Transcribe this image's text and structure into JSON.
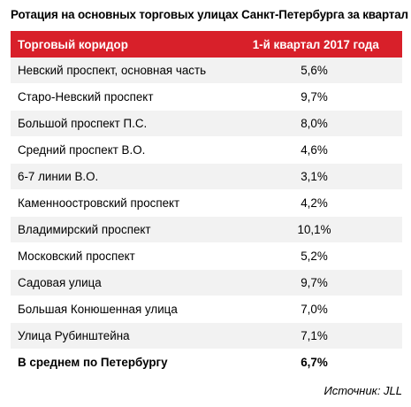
{
  "title": "Ротация на основных торговых улицах Санкт-Петербурга за квартал",
  "header": {
    "col1": "Торговый коридор",
    "col2": "1-й квартал 2017 года"
  },
  "rows": [
    {
      "street": "Невский проспект, основная часть",
      "value": "5,6%"
    },
    {
      "street": "Старо-Невский проспект",
      "value": "9,7%"
    },
    {
      "street": "Большой проспект П.С.",
      "value": "8,0%"
    },
    {
      "street": "Средний проспект В.О.",
      "value": "4,6%"
    },
    {
      "street": "6-7 линии В.О.",
      "value": "3,1%"
    },
    {
      "street": "Каменноостровский проспект",
      "value": "4,2%"
    },
    {
      "street": "Владимирский проспект",
      "value": "10,1%"
    },
    {
      "street": "Московский проспект",
      "value": "5,2%"
    },
    {
      "street": "Садовая улица",
      "value": "9,7%"
    },
    {
      "street": "Большая Конюшенная улица",
      "value": "7,0%"
    },
    {
      "street": "Улица Рубинштейна",
      "value": "7,1%"
    }
  ],
  "total": {
    "street": "В среднем по Петербургу",
    "value": "6,7%"
  },
  "source": "Источник: JLL",
  "colors": {
    "header_bg": "#d8202a",
    "stripe": "#f2f2f2"
  }
}
